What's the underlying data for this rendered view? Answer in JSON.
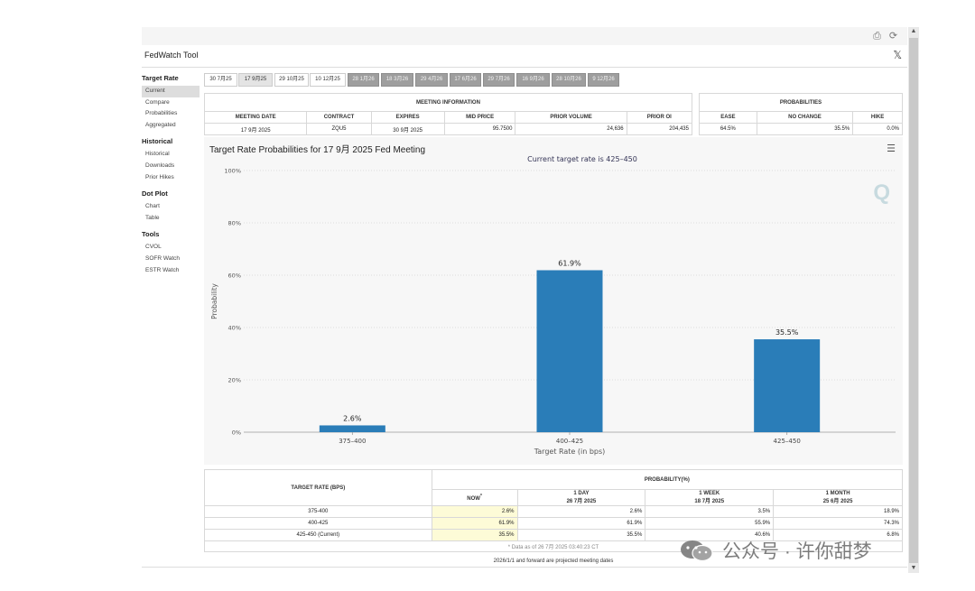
{
  "header": {
    "title": "FedWatch Tool",
    "x_glyph": "𝕏"
  },
  "sidebar": {
    "groups": [
      {
        "label": "Target Rate",
        "items": [
          "Current",
          "Compare",
          "Probabilities",
          "Aggregated"
        ]
      },
      {
        "label": "Historical",
        "items": [
          "Historical",
          "Downloads",
          "Prior Hikes"
        ]
      },
      {
        "label": "Dot Plot",
        "items": [
          "Chart",
          "Table"
        ]
      },
      {
        "label": "Tools",
        "items": [
          "CVOL",
          "SOFR Watch",
          "ESTR Watch"
        ]
      }
    ]
  },
  "tabs": [
    "30 7月25",
    "17 9月25",
    "29 10月25",
    "10 12月25",
    "28 1月26",
    "18 3月26",
    "29 4月26",
    "17 6月26",
    "29 7月26",
    "16 9月26",
    "28 10月26",
    "9 12月26"
  ],
  "meeting_info": {
    "section_title": "MEETING INFORMATION",
    "headers": [
      "MEETING DATE",
      "CONTRACT",
      "EXPIRES",
      "MID PRICE",
      "PRIOR VOLUME",
      "PRIOR OI"
    ],
    "values": [
      "17 9月 2025",
      "ZQU5",
      "30 9月 2025",
      "95.7500",
      "24,636",
      "204,435"
    ]
  },
  "probabilities": {
    "section_title": "PROBABILITIES",
    "headers": [
      "EASE",
      "NO CHANGE",
      "HIKE"
    ],
    "values": [
      "64.5%",
      "35.5%",
      "0.0%"
    ]
  },
  "chart_data": {
    "type": "bar",
    "title": "Target Rate Probabilities for 17 9月 2025 Fed Meeting",
    "subtitle": "Current target rate is 425–450",
    "xlabel": "Target Rate (in bps)",
    "ylabel": "Probability",
    "categories": [
      "375–400",
      "400–425",
      "425–450"
    ],
    "values": [
      2.6,
      61.9,
      35.5
    ],
    "data_labels": [
      "2.6%",
      "61.9%",
      "35.5%"
    ],
    "yticks": [
      "0%",
      "20%",
      "40%",
      "60%",
      "80%",
      "100%"
    ],
    "ylim": [
      0,
      100
    ],
    "grid": true,
    "bar_color": "#2a7db8"
  },
  "bottom_table": {
    "col_target": "TARGET RATE (BPS)",
    "col_prob": "PROBABILITY(%)",
    "sub_headers": [
      {
        "line1": "NOW",
        "line2": ""
      },
      {
        "line1": "1 DAY",
        "line2": "26 7月 2025"
      },
      {
        "line1": "1 WEEK",
        "line2": "18 7月 2025"
      },
      {
        "line1": "1 MONTH",
        "line2": "25 6月 2025"
      }
    ],
    "now_mark": "*",
    "rows": [
      {
        "rate": "375-400",
        "now": "2.6%",
        "day": "2.6%",
        "week": "3.5%",
        "month": "18.9%"
      },
      {
        "rate": "400-425",
        "now": "61.9%",
        "day": "61.9%",
        "week": "55.9%",
        "month": "74.3%"
      },
      {
        "rate": "425-450 (Current)",
        "now": "35.5%",
        "day": "35.5%",
        "week": "40.6%",
        "month": "6.8%"
      }
    ],
    "note": "* Data as of 26 7月 2025 03:40:23 CT"
  },
  "footer_note": "2026/1/1 and forward are projected meeting dates",
  "watermark": {
    "text": "公众号 · 许你甜梦"
  }
}
